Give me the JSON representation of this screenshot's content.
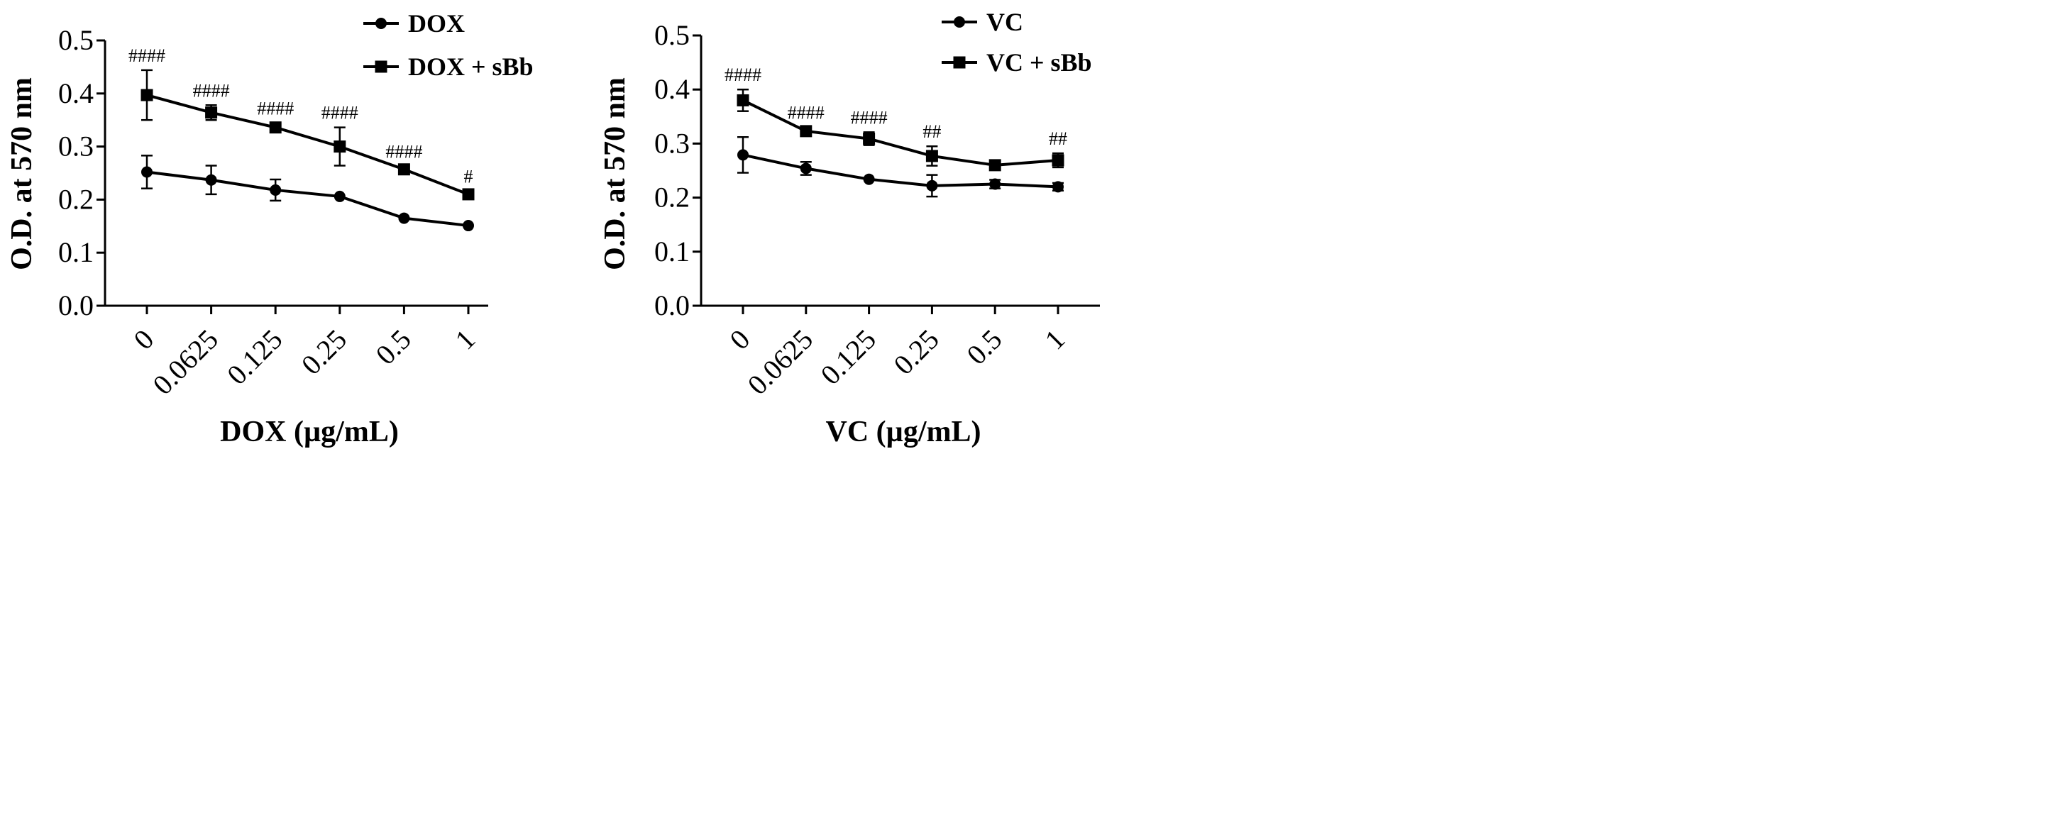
{
  "chart_data": [
    {
      "type": "line",
      "categories": [
        "0",
        "0.0625",
        "0.125",
        "0.25",
        "0.5",
        "1"
      ],
      "xlabel": "DOX (µg/mL)",
      "ylabel": "O.D. at 570 nm",
      "ylim": [
        0,
        0.5
      ],
      "yticks": [
        "0.0",
        "0.1",
        "0.2",
        "0.3",
        "0.4",
        "0.5"
      ],
      "grid": false,
      "legend_position": "top-right",
      "series": [
        {
          "name": "DOX",
          "marker": "circle",
          "values": [
            0.252,
            0.237,
            0.218,
            0.206,
            0.165,
            0.151
          ],
          "errors": [
            0.031,
            0.027,
            0.02,
            0.004,
            0.004,
            0.004
          ]
        },
        {
          "name": "DOX + sBb",
          "marker": "square",
          "values": [
            0.397,
            0.364,
            0.336,
            0.3,
            0.257,
            0.21
          ],
          "errors": [
            0.047,
            0.014,
            0.008,
            0.036,
            0.006,
            0.006
          ]
        }
      ],
      "annotations": [
        "####",
        "####",
        "####",
        "####",
        "####",
        "#"
      ]
    },
    {
      "type": "line",
      "categories": [
        "0",
        "0.0625",
        "0.125",
        "0.25",
        "0.5",
        "1"
      ],
      "xlabel": "VC (µg/mL)",
      "ylabel": "O.D. at 570 nm",
      "ylim": [
        0,
        0.5
      ],
      "yticks": [
        "0.0",
        "0.1",
        "0.2",
        "0.3",
        "0.4",
        "0.5"
      ],
      "grid": false,
      "legend_position": "top-right",
      "series": [
        {
          "name": "VC",
          "marker": "circle",
          "values": [
            0.279,
            0.254,
            0.234,
            0.222,
            0.225,
            0.22
          ],
          "errors": [
            0.033,
            0.012,
            0.004,
            0.02,
            0.008,
            0.007
          ]
        },
        {
          "name": "VC + sBb",
          "marker": "square",
          "values": [
            0.38,
            0.323,
            0.309,
            0.277,
            0.26,
            0.269
          ],
          "errors": [
            0.02,
            0.007,
            0.012,
            0.018,
            0.008,
            0.013
          ]
        }
      ],
      "annotations": [
        "####",
        "####",
        "####",
        "##",
        "",
        "##"
      ]
    }
  ]
}
